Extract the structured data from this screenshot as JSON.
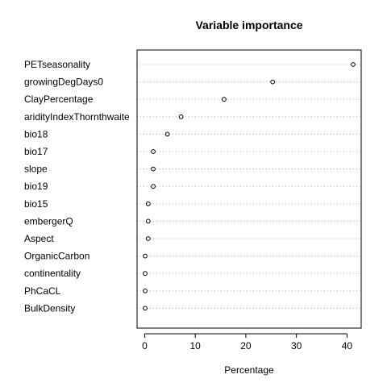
{
  "chart_data": {
    "type": "scatter",
    "subtype": "dotchart",
    "title": "Variable importance",
    "xlabel": "Percentage",
    "ylabel": "",
    "xlim": [
      -1.5,
      42.8
    ],
    "xticks": [
      0,
      10,
      20,
      30,
      40
    ],
    "grid": "dotted horizontal guides",
    "legend": "none",
    "colors": {
      "background": "#ffffff",
      "axis": "#000000",
      "guide": "#b3b3b3",
      "point": "#000000"
    },
    "categories": [
      "PETseasonality",
      "growingDegDays0",
      "ClayPercentage",
      "aridityIndexThornthwaite",
      "bio18",
      "bio17",
      "slope",
      "bio19",
      "bio15",
      "embergerQ",
      "Aspect",
      "OrganicCarbon",
      "continentality",
      "PhCaCL",
      "BulkDensity"
    ],
    "values": [
      41.2,
      25.3,
      15.7,
      7.2,
      4.5,
      1.7,
      1.7,
      1.7,
      0.7,
      0.7,
      0.7,
      0.1,
      0.1,
      0.1,
      0.1
    ]
  }
}
